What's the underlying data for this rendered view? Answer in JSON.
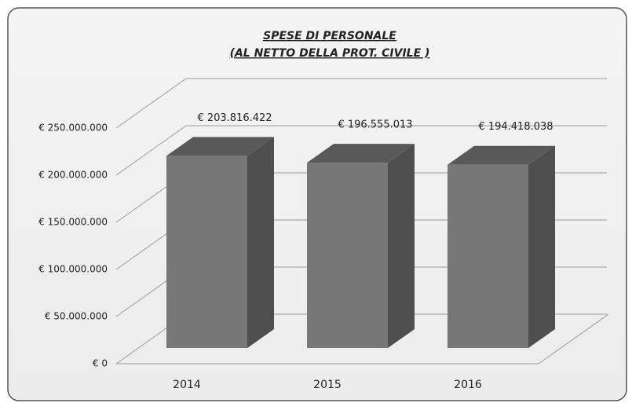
{
  "chart_data": {
    "type": "bar3d",
    "title": "SPESE DI PERSONALE",
    "subtitle": "(AL NETTO DELLA PROT. CIVILE )",
    "categories": [
      "2014",
      "2015",
      "2016"
    ],
    "values": [
      203816422,
      196555013,
      194418038
    ],
    "value_labels": [
      "€ 203.816.422",
      "€ 196.555.013",
      "€ 194.418.038"
    ],
    "color": "#777777",
    "ylim": [
      0,
      250000000
    ],
    "yticks": [
      {
        "value": 0,
        "label": "€ 0"
      },
      {
        "value": 50000000,
        "label": "€ 50.000.000"
      },
      {
        "value": 100000000,
        "label": "€ 100.000.000"
      },
      {
        "value": 150000000,
        "label": "€ 150.000.000"
      },
      {
        "value": 200000000,
        "label": "€ 200.000.000"
      },
      {
        "value": 250000000,
        "label": "€ 250.000.000"
      }
    ],
    "grid": true
  }
}
